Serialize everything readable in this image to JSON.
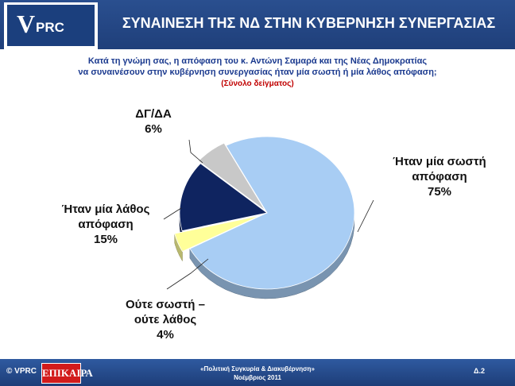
{
  "header": {
    "title": "ΣΥΝΑΙΝΕΣΗ ΤΗΣ ΝΔ ΣΤΗΝ ΚΥΒΕΡΝΗΣΗ ΣΥΝΕΡΓΑΣΙΑΣ",
    "logo_v": "V",
    "logo_text": "PRC"
  },
  "question": {
    "line1": "Κατά τη γνώμη σας, η απόφαση του κ. Αντώνη Σαμαρά και της Νέας Δημοκρατίας",
    "line2": "να συναινέσουν στην κυβέρνηση συνεργασίας ήταν μία σωστή ή μία λάθος απόφαση;",
    "line3": "(Σύνολο δείγματος)"
  },
  "chart_data": {
    "type": "pie",
    "slices": [
      {
        "label_lines": [
          "Ήταν μία σωστή",
          "απόφαση"
        ],
        "value": 75,
        "value_label": "75%",
        "color": "#a8cdf4"
      },
      {
        "label_lines": [
          "Ούτε σωστή –",
          "ούτε λάθος"
        ],
        "value": 4,
        "value_label": "4%",
        "color": "#ffff99"
      },
      {
        "label_lines": [
          "Ήταν μία λάθος",
          "απόφαση"
        ],
        "value": 15,
        "value_label": "15%",
        "color": "#0f2460"
      },
      {
        "label_lines": [
          "ΔΓ/ΔΑ"
        ],
        "value": 6,
        "value_label": "6%",
        "color": "#c8c8c8"
      }
    ]
  },
  "footer": {
    "copyright": "© VPRC",
    "brand": "ΕΠΙΚΑΙΡΑ",
    "center_line1": "«Πολιτική Συγκυρία & Διακυβέρνηση»",
    "center_line2": "Νοέμβριος 2011",
    "page": "Δ.2"
  }
}
